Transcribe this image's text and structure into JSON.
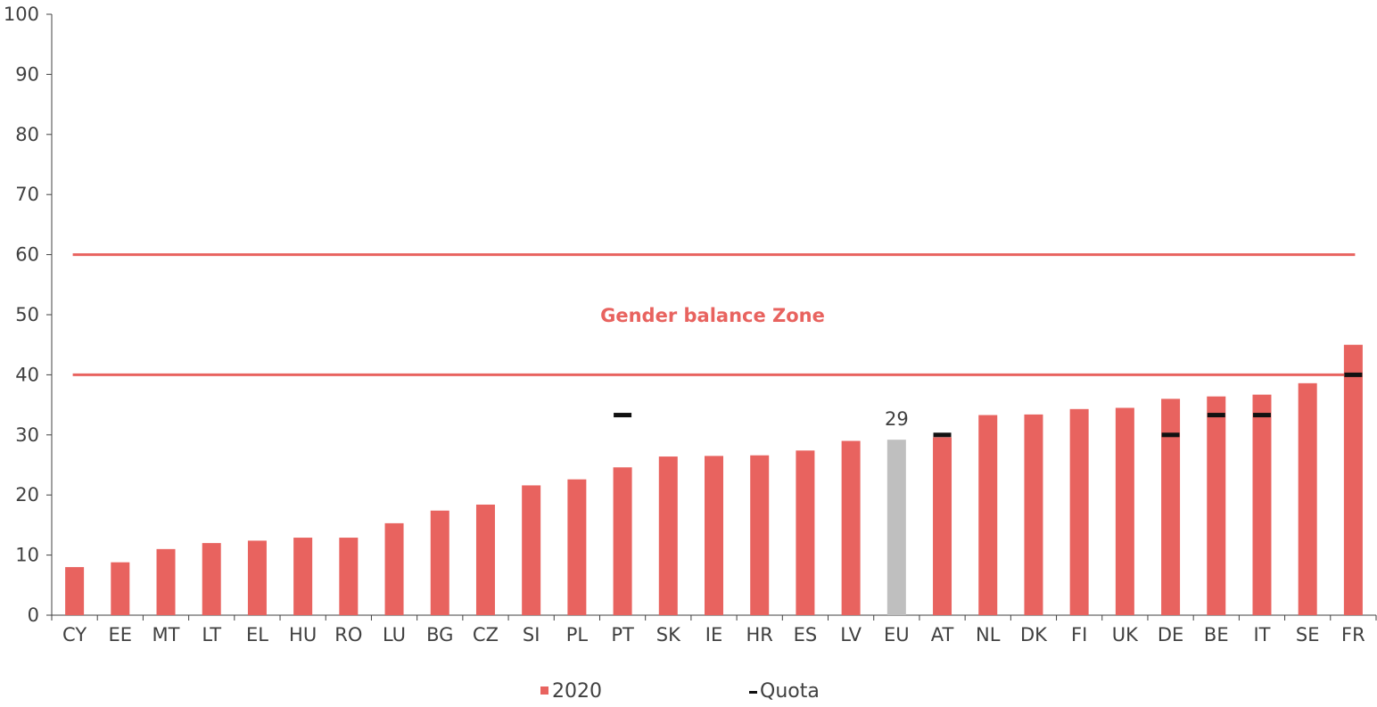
{
  "chart_data": {
    "type": "bar",
    "categories": [
      "CY",
      "EE",
      "MT",
      "LT",
      "EL",
      "HU",
      "RO",
      "LU",
      "BG",
      "CZ",
      "SI",
      "PL",
      "PT",
      "SK",
      "IE",
      "HR",
      "ES",
      "LV",
      "EU",
      "AT",
      "NL",
      "DK",
      "FI",
      "UK",
      "DE",
      "BE",
      "IT",
      "SE",
      "FR"
    ],
    "series": [
      {
        "name": "2020",
        "values": [
          8,
          8.8,
          11,
          12,
          12.4,
          12.9,
          12.9,
          15.3,
          17.4,
          18.4,
          21.6,
          22.6,
          24.6,
          26.4,
          26.5,
          26.6,
          27.4,
          29,
          29.2,
          29.6,
          33.3,
          33.4,
          34.3,
          34.5,
          36,
          36.4,
          36.7,
          38.6,
          45
        ]
      },
      {
        "name": "Quota",
        "type": "marker",
        "values": [
          null,
          null,
          null,
          null,
          null,
          null,
          null,
          null,
          null,
          null,
          null,
          null,
          33.3,
          null,
          null,
          null,
          null,
          null,
          null,
          30,
          null,
          null,
          null,
          null,
          30,
          33.3,
          33.3,
          null,
          40
        ]
      }
    ],
    "highlight_category": "EU",
    "data_labels": [
      {
        "category": "EU",
        "text": "29"
      }
    ],
    "reference_lines": [
      {
        "y": 40
      },
      {
        "y": 60
      }
    ],
    "zone_label": {
      "text": "Gender balance Zone",
      "y": 50
    },
    "ylim": [
      0,
      100
    ],
    "yticks": [
      0,
      10,
      20,
      30,
      40,
      50,
      60,
      70,
      80,
      90,
      100
    ],
    "legend": {
      "placement": "bottom-center",
      "entries": [
        "2020",
        "Quota"
      ]
    },
    "grid": false
  },
  "colors": {
    "bar": "#E8635F",
    "highlight": "#BFBFBF",
    "quota": "#111111",
    "zone": "#E8635F",
    "axis": "#404040"
  }
}
